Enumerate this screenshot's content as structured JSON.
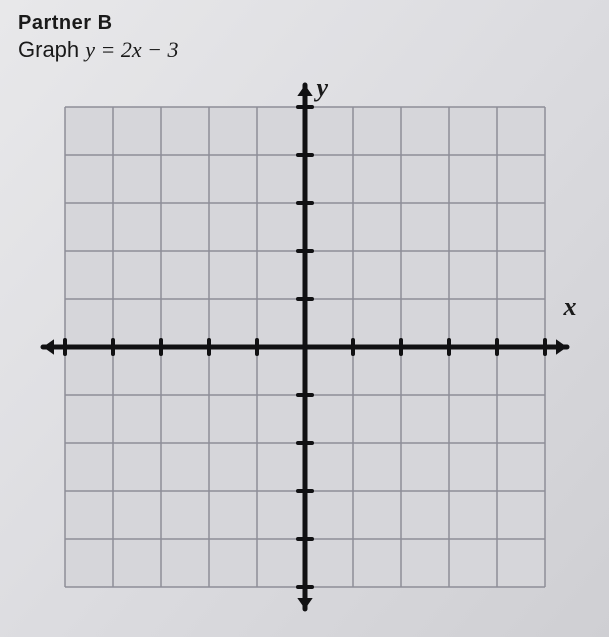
{
  "heading": "Partner B",
  "subheading_label": "Graph ",
  "equation": "y = 2x − 3",
  "axis_y_label": "y",
  "axis_x_label": "x",
  "graph": {
    "type": "line",
    "xlim": [
      -5,
      5
    ],
    "ylim": [
      -5,
      5
    ],
    "xtick_step": 1,
    "ytick_step": 1,
    "grid_cells": 10,
    "tick_length": 14,
    "background_color": "#d6d6da",
    "grid_color": "#8e8e98",
    "grid_width": 1.5,
    "axis_color": "#111113",
    "axis_width": 5,
    "tick_color": "#111113",
    "tick_width": 4,
    "arrow_size": 11,
    "show_numbers": false
  }
}
